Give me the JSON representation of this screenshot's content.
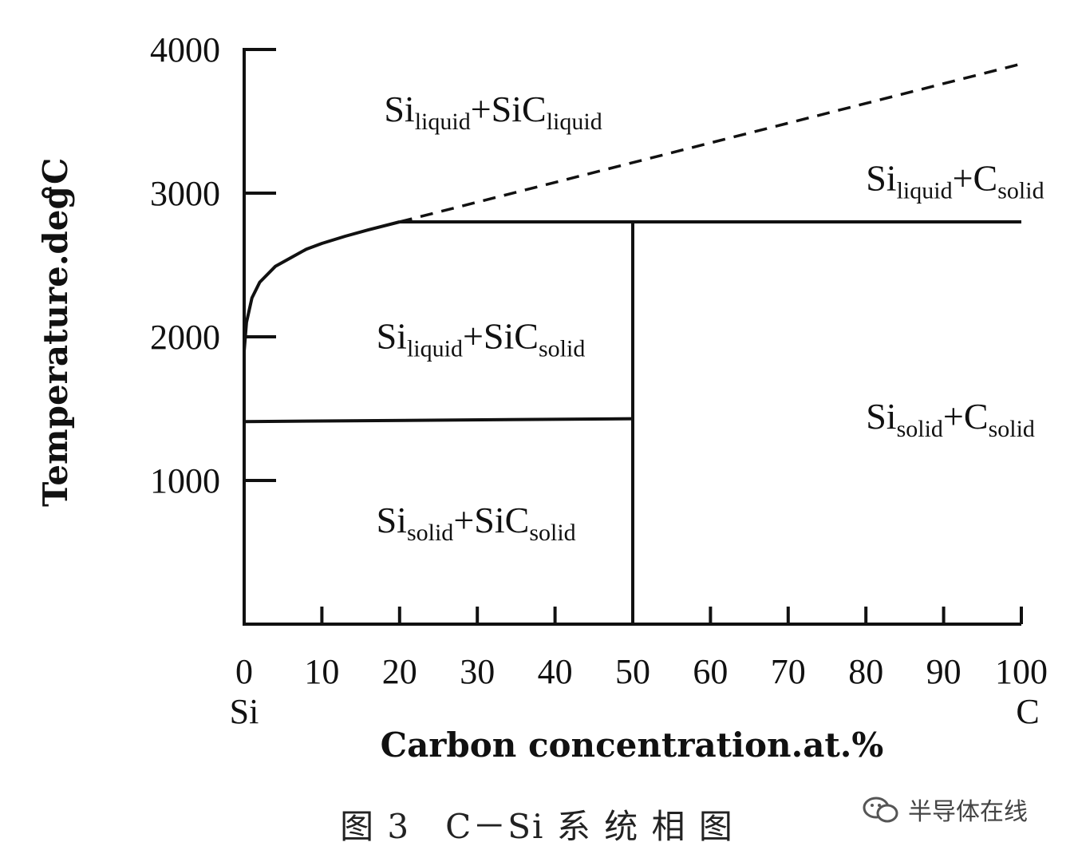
{
  "chart_data": {
    "type": "line",
    "xlabel": "Carbon concentration.at.%",
    "ylabel": "Temperature.deg",
    "ylabel_unit": "°C",
    "x_ticks": [
      "0",
      "10",
      "20",
      "30",
      "40",
      "50",
      "60",
      "70",
      "80",
      "90",
      "100"
    ],
    "x_tick_values": [
      0,
      10,
      20,
      30,
      40,
      50,
      60,
      70,
      80,
      90,
      100
    ],
    "y_ticks": [
      "1000",
      "2000",
      "3000",
      "4000"
    ],
    "y_tick_values": [
      1000,
      2000,
      3000,
      4000
    ],
    "xlim": [
      0,
      100
    ],
    "ylim": [
      0,
      4000
    ],
    "x_end_labels": {
      "left": "Si",
      "right": "C"
    },
    "grid": false,
    "series": [
      {
        "style": "solid",
        "x": [
          0,
          0.3,
          1,
          2,
          4,
          6,
          8,
          10,
          13,
          16,
          20
        ],
        "y": [
          1900,
          2100,
          2270,
          2380,
          2490,
          2550,
          2610,
          2650,
          2700,
          2745,
          2800
        ]
      },
      {
        "style": "dashed",
        "x": [
          20,
          100
        ],
        "y": [
          2800,
          3900
        ]
      },
      {
        "style": "solid",
        "x": [
          20,
          100
        ],
        "y": [
          2800,
          2800
        ]
      },
      {
        "style": "solid",
        "x": [
          50,
          50
        ],
        "y": [
          0,
          2800
        ]
      },
      {
        "style": "solid",
        "x": [
          0,
          50
        ],
        "y": [
          1410,
          1430
        ]
      }
    ],
    "regions": [
      {
        "base1": "Si",
        "sub1": "liquid",
        "plus": "+",
        "base2": "SiC",
        "sub2": "liquid",
        "x": 18,
        "y": 3500
      },
      {
        "base1": "Si",
        "sub1": "liquid",
        "plus": "+",
        "base2": "C",
        "sub2": "solid",
        "x": 80,
        "y": 3020
      },
      {
        "base1": "Si",
        "sub1": "liquid",
        "plus": "+",
        "base2": "SiC",
        "sub2": "solid",
        "x": 17,
        "y": 1920
      },
      {
        "base1": "Si",
        "sub1": "solid",
        "plus": "+",
        "base2": "C",
        "sub2": "solid",
        "x": 80,
        "y": 1360
      },
      {
        "base1": "Si",
        "sub1": "solid",
        "plus": "+",
        "base2": "SiC",
        "sub2": "solid",
        "x": 17,
        "y": 640
      }
    ]
  },
  "caption": "图 3　C－Si 系 统 相 图",
  "watermark": "半导体在线"
}
